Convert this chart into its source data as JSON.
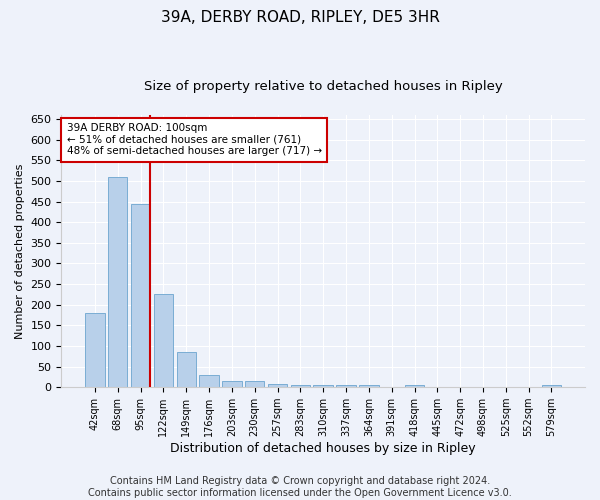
{
  "title": "39A, DERBY ROAD, RIPLEY, DE5 3HR",
  "subtitle": "Size of property relative to detached houses in Ripley",
  "xlabel": "Distribution of detached houses by size in Ripley",
  "ylabel": "Number of detached properties",
  "categories": [
    "42sqm",
    "68sqm",
    "95sqm",
    "122sqm",
    "149sqm",
    "176sqm",
    "203sqm",
    "230sqm",
    "257sqm",
    "283sqm",
    "310sqm",
    "337sqm",
    "364sqm",
    "391sqm",
    "418sqm",
    "445sqm",
    "472sqm",
    "498sqm",
    "525sqm",
    "552sqm",
    "579sqm"
  ],
  "values": [
    180,
    510,
    445,
    225,
    85,
    30,
    15,
    15,
    8,
    5,
    5,
    5,
    5,
    0,
    5,
    0,
    0,
    0,
    0,
    0,
    5
  ],
  "bar_color": "#b8d0ea",
  "bar_edgecolor": "#7aadd4",
  "vline_color": "#cc0000",
  "annotation_text": "39A DERBY ROAD: 100sqm\n← 51% of detached houses are smaller (761)\n48% of semi-detached houses are larger (717) →",
  "annotation_box_color": "#ffffff",
  "annotation_box_edgecolor": "#cc0000",
  "ylim": [
    0,
    660
  ],
  "yticks": [
    0,
    50,
    100,
    150,
    200,
    250,
    300,
    350,
    400,
    450,
    500,
    550,
    600,
    650
  ],
  "background_color": "#eef2fa",
  "plot_background": "#eef2fa",
  "footer": "Contains HM Land Registry data © Crown copyright and database right 2024.\nContains public sector information licensed under the Open Government Licence v3.0.",
  "title_fontsize": 11,
  "subtitle_fontsize": 9.5,
  "xlabel_fontsize": 9,
  "ylabel_fontsize": 8,
  "footer_fontsize": 7
}
